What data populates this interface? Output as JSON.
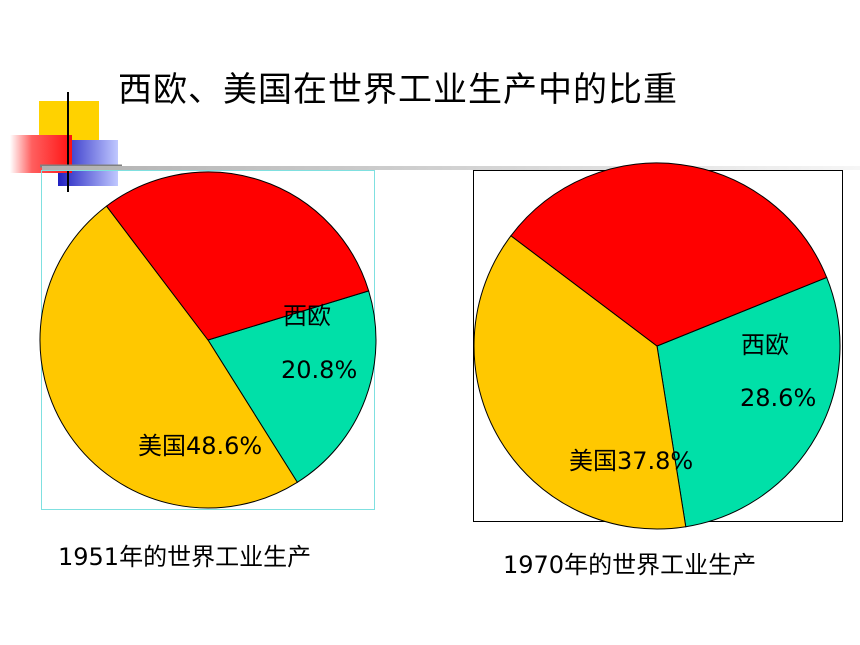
{
  "page": {
    "title": "西欧、美国在世界工业生产中的比重"
  },
  "colors": {
    "us": "#ffc800",
    "western_europe": "#00e0a8",
    "rest": "#ff0000",
    "deco_yellow": "#ffd200",
    "deco_blue": "#3030d0",
    "deco_red": "#ff2020"
  },
  "chart_data": [
    {
      "type": "pie",
      "caption": "1951年的世界工业生产",
      "slices": [
        {
          "label": "西欧",
          "value": 20.8,
          "value_text": "20.8%",
          "color": "#00e0a8"
        },
        {
          "label": "美国",
          "value": 48.6,
          "value_text": "美国48.6%",
          "color": "#ffc800"
        },
        {
          "label": "",
          "value": 30.6,
          "value_text": "",
          "color": "#ff0000"
        }
      ]
    },
    {
      "type": "pie",
      "caption": "1970年的世界工业生产",
      "slices": [
        {
          "label": "西欧",
          "value": 28.6,
          "value_text": "28.6%",
          "color": "#00e0a8"
        },
        {
          "label": "美国",
          "value": 37.8,
          "value_text": "美国37.8%",
          "color": "#ffc800"
        },
        {
          "label": "",
          "value": 33.6,
          "value_text": "",
          "color": "#ff0000"
        }
      ]
    }
  ]
}
